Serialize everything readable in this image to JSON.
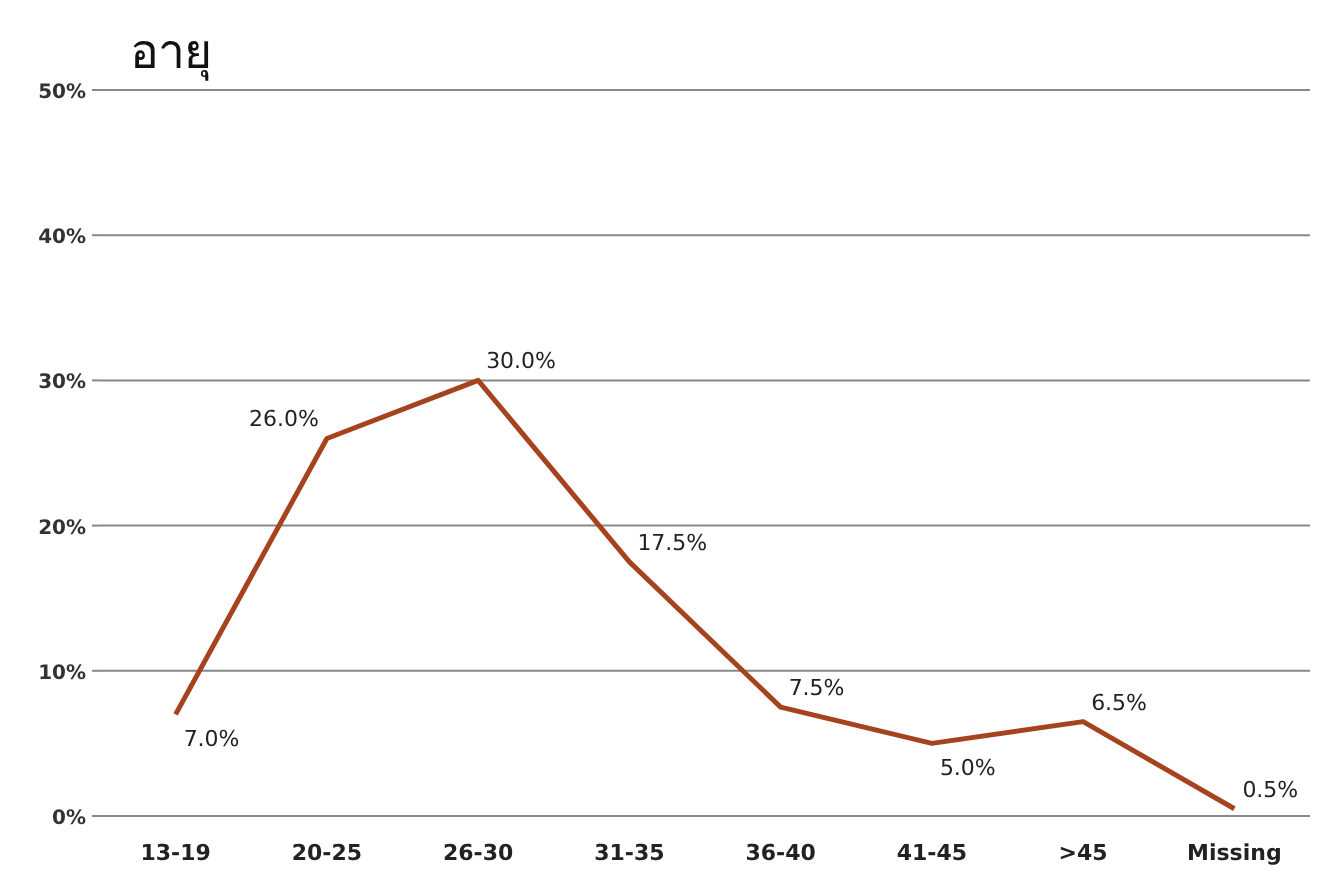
{
  "chart_data": {
    "type": "line",
    "title": "อายุ",
    "categories": [
      "13-19",
      "20-25",
      "26-30",
      "31-35",
      "36-40",
      "41-45",
      ">45",
      "Missing"
    ],
    "series": [
      {
        "color": "#a5431f",
        "values": [
          7.0,
          26.0,
          30.0,
          17.5,
          7.5,
          5.0,
          6.5,
          0.5
        ],
        "value_labels": [
          "7.0%",
          "26.0%",
          "30.0%",
          "17.5%",
          "7.5%",
          "5.0%",
          "6.5%",
          "0.5%"
        ]
      }
    ],
    "ylim": [
      0,
      50
    ],
    "yticks": [
      {
        "value": 0,
        "label": "0%"
      },
      {
        "value": 10,
        "label": "10%"
      },
      {
        "value": 20,
        "label": "20%"
      },
      {
        "value": 30,
        "label": "30%"
      },
      {
        "value": 40,
        "label": "40%"
      },
      {
        "value": 50,
        "label": "50%"
      }
    ],
    "grid": "y",
    "marker": "none",
    "line_style": "solid"
  }
}
